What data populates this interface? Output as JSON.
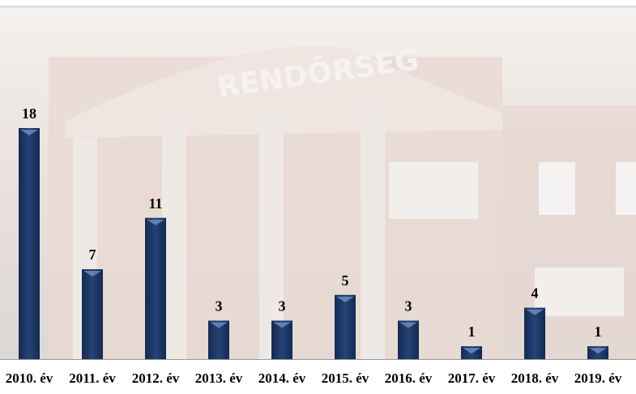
{
  "chart_data": {
    "type": "bar",
    "categories": [
      "2010. év",
      "2011. év",
      "2012. év",
      "2013. év",
      "2014. év",
      "2015. év",
      "2016. év",
      "2017. év",
      "2018. év",
      "2019. év"
    ],
    "values": [
      18,
      7,
      11,
      3,
      3,
      5,
      3,
      1,
      4,
      1
    ],
    "color": "#1c3766"
  }
}
